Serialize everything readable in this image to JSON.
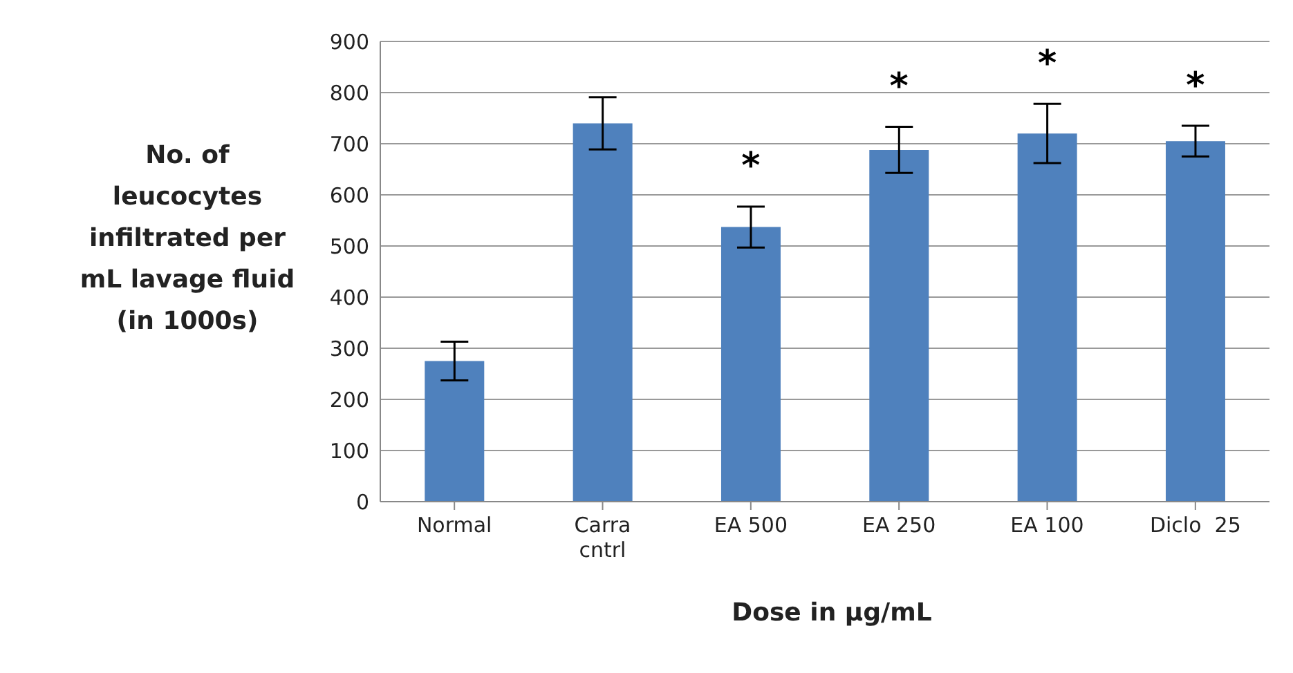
{
  "chart_data": {
    "type": "bar",
    "xlabel": "Dose in µg/mL",
    "ylabel": "No. of leucocytes infiltrated per mL lavage fluid (in 1000s)",
    "categories": [
      "Normal",
      "Carra cntrl",
      "EA 500",
      "EA 250",
      "EA 100",
      "Diclo  25"
    ],
    "values": [
      275,
      740,
      537,
      688,
      720,
      705
    ],
    "errors": [
      38,
      51,
      40,
      45,
      58,
      30
    ],
    "color": "#4f81bd",
    "ylim": [
      0,
      900
    ],
    "yticks": [
      0,
      100,
      200,
      300,
      400,
      500,
      600,
      700,
      800,
      900
    ],
    "grid": "y",
    "value_labels": [
      null,
      null,
      "*",
      "*",
      "*",
      "*"
    ]
  }
}
